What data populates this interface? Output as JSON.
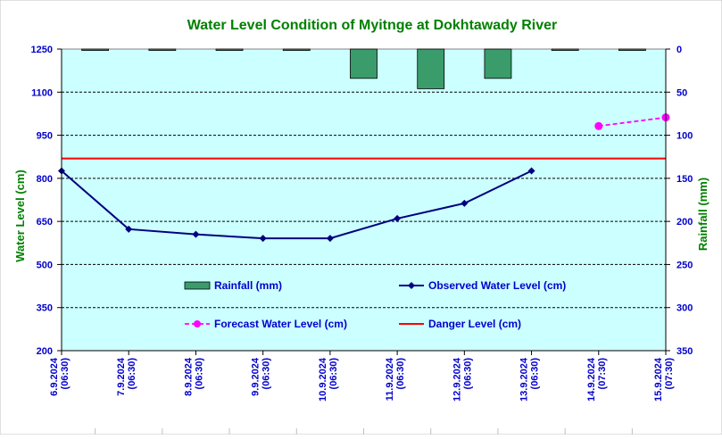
{
  "chart_data": {
    "type": "line",
    "title": "Water Level Condition of Myitnge at Dokhtawady River",
    "ylabel": "Water Level (cm)",
    "y2label": "Rainfall (mm)",
    "categories": [
      [
        "6.9.2024",
        "(06:30)"
      ],
      [
        "7.9.2024",
        "(06:30)"
      ],
      [
        "8.9.2024",
        "(06:30)"
      ],
      [
        "9.9.2024",
        "(06:30)"
      ],
      [
        "10.9.2024",
        "(06:30)"
      ],
      [
        "11.9.2024",
        "(06:30)"
      ],
      [
        "12.9.2024",
        "(06:30)"
      ],
      [
        "13.9.2024",
        "(06:30)"
      ],
      [
        "14.9.2024",
        "(07:30)"
      ],
      [
        "15.9.2024",
        "(07:30)"
      ]
    ],
    "ylim": [
      200,
      1250
    ],
    "yticks": [
      200,
      350,
      500,
      650,
      800,
      950,
      1100,
      1250
    ],
    "y2lim": [
      0,
      350
    ],
    "y2ticks": [
      0,
      50,
      100,
      150,
      200,
      250,
      300,
      350
    ],
    "y2_inverted": true,
    "grid": "horizontal dashed",
    "legend_placement": "inside-bottom",
    "series": [
      {
        "name": "Rainfall (mm)",
        "kind": "bar",
        "axis": "right",
        "color": "#3a9c6b",
        "values": [
          1,
          1,
          0,
          0.5,
          34,
          46,
          34,
          1.5,
          1.5,
          0
        ]
      },
      {
        "name": "Observed Water Level (cm)",
        "kind": "line",
        "axis": "left",
        "color": "#000080",
        "marker": "diamond",
        "values": [
          826,
          623,
          605,
          591,
          591,
          660,
          713,
          826,
          null,
          null
        ]
      },
      {
        "name": "Forecast Water Level (cm)",
        "kind": "line-dashed",
        "axis": "left",
        "color": "#ff00ff",
        "marker": "circle",
        "values": [
          null,
          null,
          null,
          null,
          null,
          null,
          null,
          null,
          982,
          1012
        ]
      },
      {
        "name": "Danger Level (cm)",
        "kind": "hline",
        "axis": "left",
        "color": "#ff0000",
        "value": 869
      }
    ],
    "colors": {
      "plot_background": "#ccffff",
      "title": "#008000",
      "axis_labels": "#008000",
      "tick_labels": "#0000cc"
    }
  }
}
